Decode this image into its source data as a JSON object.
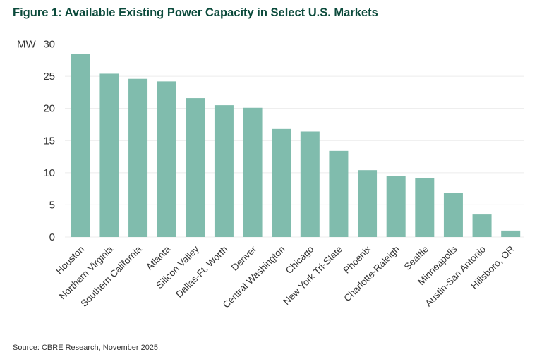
{
  "chart_data": {
    "type": "bar",
    "title": "Figure 1: Available Existing Power Capacity in Select U.S. Markets",
    "ylabel": "MW",
    "xlabel": "",
    "ylim": [
      0,
      30
    ],
    "yticks": [
      0,
      5,
      10,
      15,
      20,
      25,
      30
    ],
    "grid": true,
    "categories": [
      "Houston",
      "Northern Virginia",
      "Southern California",
      "Atlanta",
      "Silicon Valley",
      "Dallas-Ft. Worth",
      "Denver",
      "Central Washington",
      "Chicago",
      "New York Tri-State",
      "Phoenix",
      "Charlotte-Raleigh",
      "Seattle",
      "Minneapolis",
      "Austin-San Antonio",
      "Hillsboro, OR"
    ],
    "values": [
      28.5,
      25.4,
      24.6,
      24.2,
      21.6,
      20.5,
      20.1,
      16.8,
      16.4,
      13.4,
      10.4,
      9.5,
      9.2,
      6.9,
      3.5,
      1.0
    ],
    "bar_color": "#80bcad",
    "source": "Source: CBRE Research, November 2025."
  }
}
